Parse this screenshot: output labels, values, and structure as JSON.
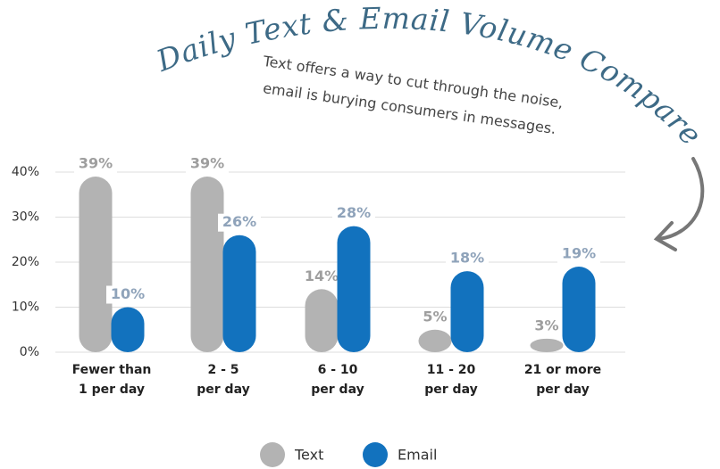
{
  "chart_data": {
    "type": "bar",
    "title": "Daily Text & Email Volume Compared",
    "subtitle": [
      "Text offers a way to cut through the noise,",
      "email is burying consumers in messages."
    ],
    "categories": [
      [
        "Fewer than",
        "1 per day"
      ],
      [
        "2 - 5",
        "per day"
      ],
      [
        "6 - 10",
        "per day"
      ],
      [
        "11 - 20",
        "per day"
      ],
      [
        "21 or more",
        "per day"
      ]
    ],
    "series": [
      {
        "name": "Text",
        "color": "#b3b3b3",
        "values": [
          39,
          39,
          14,
          5,
          3
        ],
        "value_labels": [
          "39%",
          "39%",
          "14%",
          "5%",
          "3%"
        ]
      },
      {
        "name": "Email",
        "color": "#1272be",
        "values": [
          10,
          26,
          28,
          18,
          19
        ],
        "value_labels": [
          "10%",
          "26%",
          "28%",
          "18%",
          "19%"
        ]
      }
    ],
    "ylim": [
      0,
      40
    ],
    "yticks": [
      {
        "value": 0,
        "label": "0%"
      },
      {
        "value": 10,
        "label": "10%"
      },
      {
        "value": 20,
        "label": "20%"
      },
      {
        "value": 30,
        "label": "30%"
      },
      {
        "value": 40,
        "label": "40%"
      }
    ],
    "grid": true
  }
}
